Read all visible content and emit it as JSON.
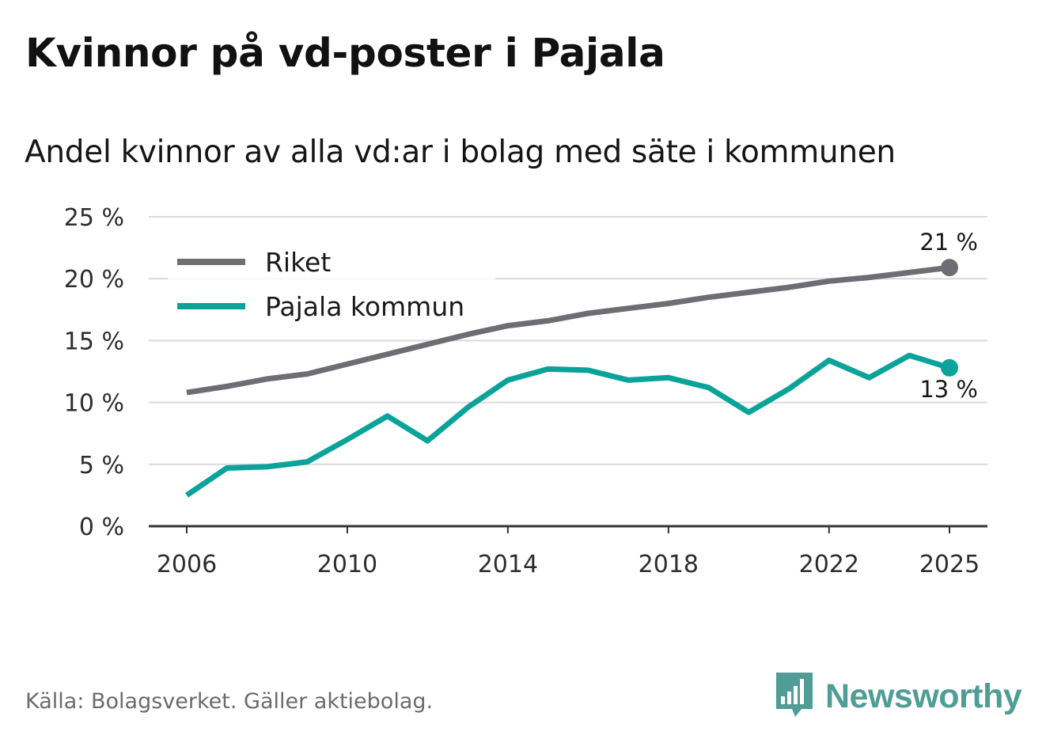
{
  "title": "Kvinnor på vd-poster i Pajala",
  "subtitle": "Andel kvinnor av alla vd:ar i bolag med säte i kommunen",
  "source": "Källa: Bolagsverket. Gäller aktiebolag.",
  "brand": {
    "name": "Newsworthy",
    "logo_icon": "bar-chart-speech-bubble-icon",
    "color": "#4f9d94"
  },
  "chart_data": {
    "type": "line",
    "title": "Kvinnor på vd-poster i Pajala",
    "subtitle": "Andel kvinnor av alla vd:ar i bolag med säte i kommunen",
    "xlabel": "",
    "ylabel": "",
    "x": [
      2006,
      2007,
      2008,
      2009,
      2010,
      2011,
      2012,
      2013,
      2014,
      2015,
      2016,
      2017,
      2018,
      2019,
      2020,
      2021,
      2022,
      2023,
      2024,
      2025
    ],
    "xticks": [
      {
        "value": 2006,
        "label": "2006"
      },
      {
        "value": 2010,
        "label": "2010"
      },
      {
        "value": 2014,
        "label": "2014"
      },
      {
        "value": 2018,
        "label": "2018"
      },
      {
        "value": 2022,
        "label": "2022"
      },
      {
        "value": 2025,
        "label": "2025"
      }
    ],
    "ylim": [
      0,
      25
    ],
    "yticks": [
      {
        "value": 0,
        "label": "0 %"
      },
      {
        "value": 5,
        "label": "5 %"
      },
      {
        "value": 10,
        "label": "10 %"
      },
      {
        "value": 15,
        "label": "15 %"
      },
      {
        "value": 20,
        "label": "20 %"
      },
      {
        "value": 25,
        "label": "25 %"
      }
    ],
    "grid": true,
    "legend_position": "top-left",
    "series": [
      {
        "name": "Riket",
        "color": "#6e6d73",
        "values": [
          10.8,
          11.3,
          11.9,
          12.3,
          13.1,
          13.9,
          14.7,
          15.5,
          16.2,
          16.6,
          17.2,
          17.6,
          18.0,
          18.5,
          18.9,
          19.3,
          19.8,
          20.1,
          20.5,
          20.9
        ],
        "end_label": "21 %"
      },
      {
        "name": "Pajala kommun",
        "color": "#0aa39a",
        "values": [
          2.5,
          4.7,
          4.8,
          5.2,
          7.0,
          8.9,
          6.9,
          9.6,
          11.8,
          12.7,
          12.6,
          11.8,
          12.0,
          11.2,
          9.2,
          11.1,
          13.4,
          12.0,
          13.8,
          12.8
        ],
        "end_label": "13 %"
      }
    ]
  }
}
